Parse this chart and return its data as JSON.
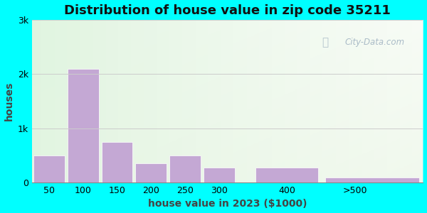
{
  "title": "Distribution of house value in zip code 35211",
  "xlabel": "house value in 2023 ($1000)",
  "ylabel": "houses",
  "bar_labels": [
    "50",
    "100",
    "150",
    "200",
    "250",
    "300",
    "400",
    ">500"
  ],
  "bar_values": [
    500,
    2100,
    750,
    350,
    500,
    280,
    280,
    90
  ],
  "bar_lefts": [
    25,
    75,
    125,
    175,
    225,
    275,
    350,
    450
  ],
  "bar_widths": [
    50,
    50,
    50,
    50,
    50,
    50,
    100,
    150
  ],
  "bar_color": "#c4a8d4",
  "bar_edgecolor": "#c4a8d4",
  "ylim": [
    0,
    3000
  ],
  "yticks": [
    0,
    1000,
    2000,
    3000
  ],
  "ytick_labels": [
    "0",
    "1k",
    "2k",
    "3k"
  ],
  "xtick_positions": [
    50,
    100,
    150,
    200,
    250,
    300,
    400,
    500
  ],
  "xtick_labels": [
    "50",
    "100",
    "150",
    "200",
    "250",
    "300",
    "400",
    ">500"
  ],
  "xlim": [
    25,
    600
  ],
  "bg_outer": "#00FFFF",
  "bg_plot": "#e8f5e2",
  "title_fontsize": 13,
  "axis_label_fontsize": 10,
  "watermark_text": "City-Data.com"
}
